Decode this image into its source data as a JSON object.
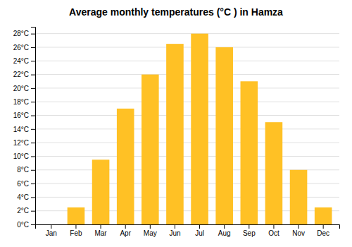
{
  "chart_data": {
    "type": "bar",
    "title": "Average monthly temperatures (°C ) in Hamza",
    "categories": [
      "Jan",
      "Feb",
      "Mar",
      "Apr",
      "May",
      "Jun",
      "Jul",
      "Aug",
      "Sep",
      "Oct",
      "Nov",
      "Dec"
    ],
    "values": [
      0,
      2.5,
      9.5,
      17,
      22,
      26.5,
      28,
      26,
      21,
      15,
      8,
      2.5
    ],
    "color": "#FFC125",
    "ylim": [
      0,
      29
    ],
    "yticks": [
      {
        "value": 0,
        "label": "0°C"
      },
      {
        "value": 2,
        "label": "2°C"
      },
      {
        "value": 4,
        "label": "4°C"
      },
      {
        "value": 6,
        "label": "6°C"
      },
      {
        "value": 8,
        "label": "8°C"
      },
      {
        "value": 10,
        "label": "10°C"
      },
      {
        "value": 12,
        "label": "12°C"
      },
      {
        "value": 14,
        "label": "14°C"
      },
      {
        "value": 16,
        "label": "16°C"
      },
      {
        "value": 18,
        "label": "18°C"
      },
      {
        "value": 20,
        "label": "20°C"
      },
      {
        "value": 22,
        "label": "22°C"
      },
      {
        "value": 24,
        "label": "24°C"
      },
      {
        "value": 26,
        "label": "26°C"
      },
      {
        "value": 28,
        "label": "28°C"
      }
    ],
    "grid": true
  }
}
